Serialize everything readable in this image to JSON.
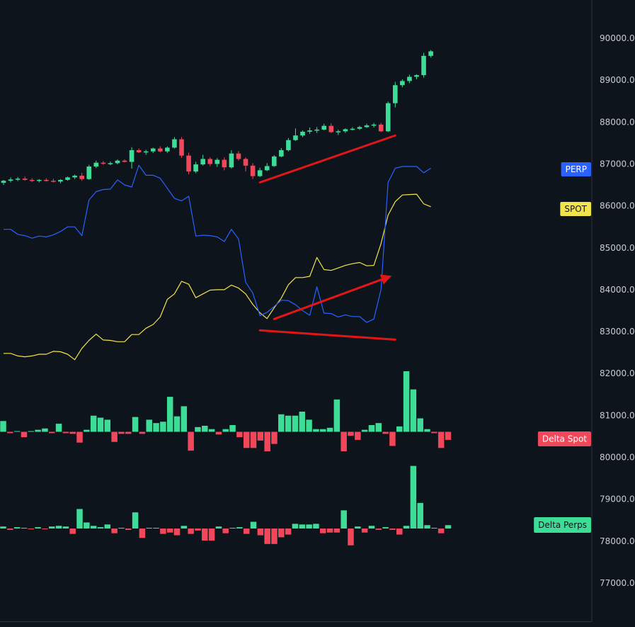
{
  "chart_data": {
    "type": "candlestick",
    "price_axis": {
      "ticks": [
        "90000.0",
        "89000.0",
        "88000.0",
        "87000.0",
        "86000.0",
        "85000.0",
        "84000.0",
        "83000.0",
        "82000.0",
        "81000.0",
        "80000.0",
        "79000.0",
        "78000.0",
        "77000.0"
      ],
      "range": [
        76300,
        91000
      ]
    },
    "last_price": {
      "value": 89688.6,
      "label": "89688.6"
    },
    "colors": {
      "background": "#0e141c",
      "up": "#3ddc97",
      "down": "#f0475a",
      "perp": "#2962ff",
      "spot": "#f3e34a",
      "arrow": "#e21616"
    },
    "candles": [
      [
        86550,
        86620,
        86500,
        86600
      ],
      [
        86600,
        86680,
        86560,
        86630
      ],
      [
        86630,
        86690,
        86590,
        86650
      ],
      [
        86650,
        86700,
        86600,
        86620
      ],
      [
        86620,
        86660,
        86570,
        86600
      ],
      [
        86600,
        86640,
        86560,
        86620
      ],
      [
        86620,
        86660,
        86580,
        86600
      ],
      [
        86600,
        86650,
        86560,
        86580
      ],
      [
        86580,
        86640,
        86540,
        86620
      ],
      [
        86620,
        86700,
        86600,
        86680
      ],
      [
        86680,
        86750,
        86640,
        86720
      ],
      [
        86720,
        86790,
        86600,
        86640
      ],
      [
        86640,
        86980,
        86620,
        86940
      ],
      [
        86940,
        87080,
        86900,
        87030
      ],
      [
        87030,
        87070,
        86980,
        87010
      ],
      [
        87010,
        87060,
        86970,
        87020
      ],
      [
        87020,
        87110,
        86990,
        87080
      ],
      [
        87080,
        87110,
        87040,
        87050
      ],
      [
        87050,
        87400,
        86890,
        87330
      ],
      [
        87330,
        87370,
        87260,
        87280
      ],
      [
        87280,
        87340,
        87220,
        87300
      ],
      [
        87300,
        87390,
        87260,
        87370
      ],
      [
        87370,
        87420,
        87280,
        87300
      ],
      [
        87300,
        87420,
        87260,
        87390
      ],
      [
        87390,
        87640,
        87370,
        87590
      ],
      [
        87590,
        87640,
        87150,
        87200
      ],
      [
        87200,
        87270,
        86750,
        86820
      ],
      [
        86820,
        87050,
        86780,
        86990
      ],
      [
        86990,
        87220,
        86960,
        87120
      ],
      [
        87120,
        87160,
        86950,
        87000
      ],
      [
        87000,
        87140,
        86930,
        87100
      ],
      [
        87100,
        87160,
        86850,
        86920
      ],
      [
        86920,
        87330,
        86890,
        87250
      ],
      [
        87250,
        87310,
        87080,
        87120
      ],
      [
        87120,
        87160,
        86820,
        86960
      ],
      [
        86960,
        87020,
        86640,
        86710
      ],
      [
        86710,
        86910,
        86690,
        86850
      ],
      [
        86850,
        87020,
        86830,
        86950
      ],
      [
        86950,
        87210,
        86930,
        87180
      ],
      [
        87180,
        87380,
        87160,
        87330
      ],
      [
        87330,
        87620,
        87300,
        87570
      ],
      [
        87570,
        87850,
        87550,
        87680
      ],
      [
        87680,
        87800,
        87640,
        87770
      ],
      [
        87770,
        87870,
        87720,
        87800
      ],
      [
        87800,
        87880,
        87740,
        87820
      ],
      [
        87820,
        87960,
        87800,
        87910
      ],
      [
        87910,
        87970,
        87740,
        87760
      ],
      [
        87760,
        87820,
        87690,
        87780
      ],
      [
        87780,
        87850,
        87740,
        87830
      ],
      [
        87830,
        87880,
        87800,
        87840
      ],
      [
        87840,
        87910,
        87810,
        87880
      ],
      [
        87880,
        87960,
        87860,
        87920
      ],
      [
        87920,
        87980,
        87870,
        87940
      ],
      [
        87940,
        87980,
        87760,
        87780
      ],
      [
        87780,
        88490,
        87760,
        88450
      ],
      [
        88450,
        88960,
        88350,
        88880
      ],
      [
        88880,
        89020,
        88830,
        88980
      ],
      [
        88980,
        89130,
        88930,
        89080
      ],
      [
        89080,
        89140,
        89020,
        89120
      ],
      [
        89120,
        89650,
        89060,
        89580
      ],
      [
        89580,
        89720,
        89540,
        89688.6
      ]
    ],
    "series": [
      {
        "name": "PERP",
        "values": [
          85440,
          85440,
          85320,
          85290,
          85230,
          85280,
          85260,
          85310,
          85390,
          85500,
          85500,
          85290,
          86140,
          86340,
          86390,
          86400,
          86620,
          86500,
          86450,
          86970,
          86730,
          86730,
          86660,
          86420,
          86180,
          86120,
          86230,
          85280,
          85300,
          85290,
          85260,
          85150,
          85440,
          85210,
          84180,
          83920,
          83380,
          83460,
          83600,
          83750,
          83740,
          83640,
          83500,
          83390,
          84070,
          83440,
          83430,
          83350,
          83400,
          83360,
          83360,
          83220,
          83300,
          84000,
          86560,
          86900,
          86940,
          86940,
          86940,
          86790,
          86900
        ]
      },
      {
        "name": "SPOT",
        "values": [
          82480,
          82480,
          82420,
          82400,
          82420,
          82460,
          82460,
          82530,
          82520,
          82460,
          82330,
          82600,
          82790,
          82940,
          82800,
          82790,
          82760,
          82760,
          82930,
          82930,
          83080,
          83170,
          83350,
          83770,
          83900,
          84200,
          84130,
          83810,
          83900,
          83990,
          84000,
          84000,
          84110,
          84040,
          83900,
          83650,
          83450,
          83310,
          83570,
          83800,
          84120,
          84290,
          84290,
          84320,
          84770,
          84480,
          84460,
          84520,
          84580,
          84620,
          84650,
          84570,
          84580,
          85100,
          85780,
          86100,
          86260,
          86270,
          86280,
          86050,
          85980
        ]
      }
    ],
    "tags": {
      "perp": "PERP",
      "spot": "SPOT",
      "delta_spot": "Delta Spot",
      "delta_perps": "Delta Perps"
    },
    "delta_spot": {
      "values": [
        0.8,
        -0.1,
        0.05,
        -0.4,
        0.05,
        0.15,
        0.25,
        -0.1,
        0.6,
        -0.1,
        -0.15,
        -0.8,
        0.15,
        1.2,
        1.05,
        0.9,
        -0.75,
        -0.15,
        -0.15,
        1.1,
        -0.15,
        0.9,
        0.65,
        0.75,
        2.6,
        1.15,
        1.9,
        -1.4,
        0.35,
        0.45,
        0.2,
        -0.2,
        0.2,
        0.5,
        -0.4,
        -1.2,
        -1.2,
        -0.65,
        -1.45,
        -0.9,
        1.3,
        1.2,
        1.2,
        1.5,
        0.9,
        0.2,
        0.2,
        0.3,
        2.4,
        -1.45,
        -0.3,
        -0.6,
        0.15,
        0.5,
        0.65,
        -0.15,
        -1.05,
        0.4,
        4.5,
        3.15,
        1.0,
        0.2,
        -0.1,
        -1.2,
        -0.6
      ]
    },
    "delta_perps": {
      "values": [
        0.15,
        -0.1,
        0.1,
        0.05,
        -0.05,
        0.1,
        -0.05,
        0.15,
        0.2,
        0.15,
        -0.4,
        1.45,
        0.45,
        0.2,
        0.1,
        0.3,
        -0.35,
        0.05,
        -0.1,
        1.2,
        -0.7,
        0.05,
        0.05,
        -0.4,
        -0.3,
        -0.5,
        0.2,
        -0.4,
        -0.15,
        -0.9,
        -0.9,
        0.15,
        -0.35,
        0.05,
        0.1,
        -0.4,
        0.5,
        -0.5,
        -1.15,
        -1.15,
        -0.65,
        -0.45,
        0.35,
        0.3,
        0.3,
        0.35,
        -0.35,
        -0.3,
        -0.3,
        1.35,
        -1.25,
        0.15,
        -0.3,
        0.2,
        -0.1,
        0.1,
        -0.1,
        -0.45,
        0.2,
        4.65,
        1.9,
        0.25,
        0.05,
        -0.35,
        0.25
      ]
    },
    "annotations": [
      {
        "kind": "line",
        "from": [
          36,
          86560
        ],
        "to": [
          55,
          87680
        ]
      },
      {
        "kind": "arrow",
        "from": [
          38,
          83300
        ],
        "to": [
          54,
          84300
        ]
      },
      {
        "kind": "line",
        "from": [
          36,
          83030
        ],
        "to": [
          55,
          82810
        ]
      }
    ]
  }
}
